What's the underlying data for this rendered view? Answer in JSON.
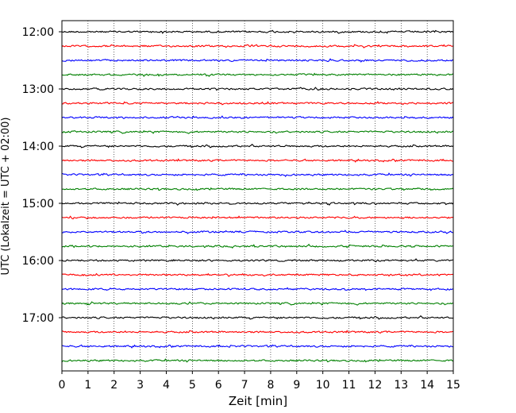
{
  "chart_data": {
    "type": "line",
    "title": "",
    "xlabel": "Zeit  [min]",
    "ylabel": "UTC (Lokalzeit = UTC + 02:00)",
    "xlim": [
      0,
      15
    ],
    "x_ticks": [
      0,
      1,
      2,
      3,
      4,
      5,
      6,
      7,
      8,
      9,
      10,
      11,
      12,
      13,
      14,
      15
    ],
    "y_tick_labels": [
      "12:00",
      "13:00",
      "14:00",
      "15:00",
      "16:00",
      "17:00"
    ],
    "x_grid": true,
    "trace_interval_minutes": 15,
    "series": [
      {
        "start": "12:00",
        "color": "#000000"
      },
      {
        "start": "12:15",
        "color": "#ff0000"
      },
      {
        "start": "12:30",
        "color": "#0000ff"
      },
      {
        "start": "12:45",
        "color": "#008000"
      },
      {
        "start": "13:00",
        "color": "#000000"
      },
      {
        "start": "13:15",
        "color": "#ff0000"
      },
      {
        "start": "13:30",
        "color": "#0000ff"
      },
      {
        "start": "13:45",
        "color": "#008000"
      },
      {
        "start": "14:00",
        "color": "#000000"
      },
      {
        "start": "14:15",
        "color": "#ff0000"
      },
      {
        "start": "14:30",
        "color": "#0000ff"
      },
      {
        "start": "14:45",
        "color": "#008000"
      },
      {
        "start": "15:00",
        "color": "#000000"
      },
      {
        "start": "15:15",
        "color": "#ff0000"
      },
      {
        "start": "15:30",
        "color": "#0000ff"
      },
      {
        "start": "15:45",
        "color": "#008000"
      },
      {
        "start": "16:00",
        "color": "#000000"
      },
      {
        "start": "16:15",
        "color": "#ff0000"
      },
      {
        "start": "16:30",
        "color": "#0000ff"
      },
      {
        "start": "16:45",
        "color": "#008000"
      },
      {
        "start": "17:00",
        "color": "#000000"
      },
      {
        "start": "17:15",
        "color": "#ff0000"
      },
      {
        "start": "17:30",
        "color": "#0000ff"
      },
      {
        "start": "17:45",
        "color": "#008000"
      }
    ]
  }
}
